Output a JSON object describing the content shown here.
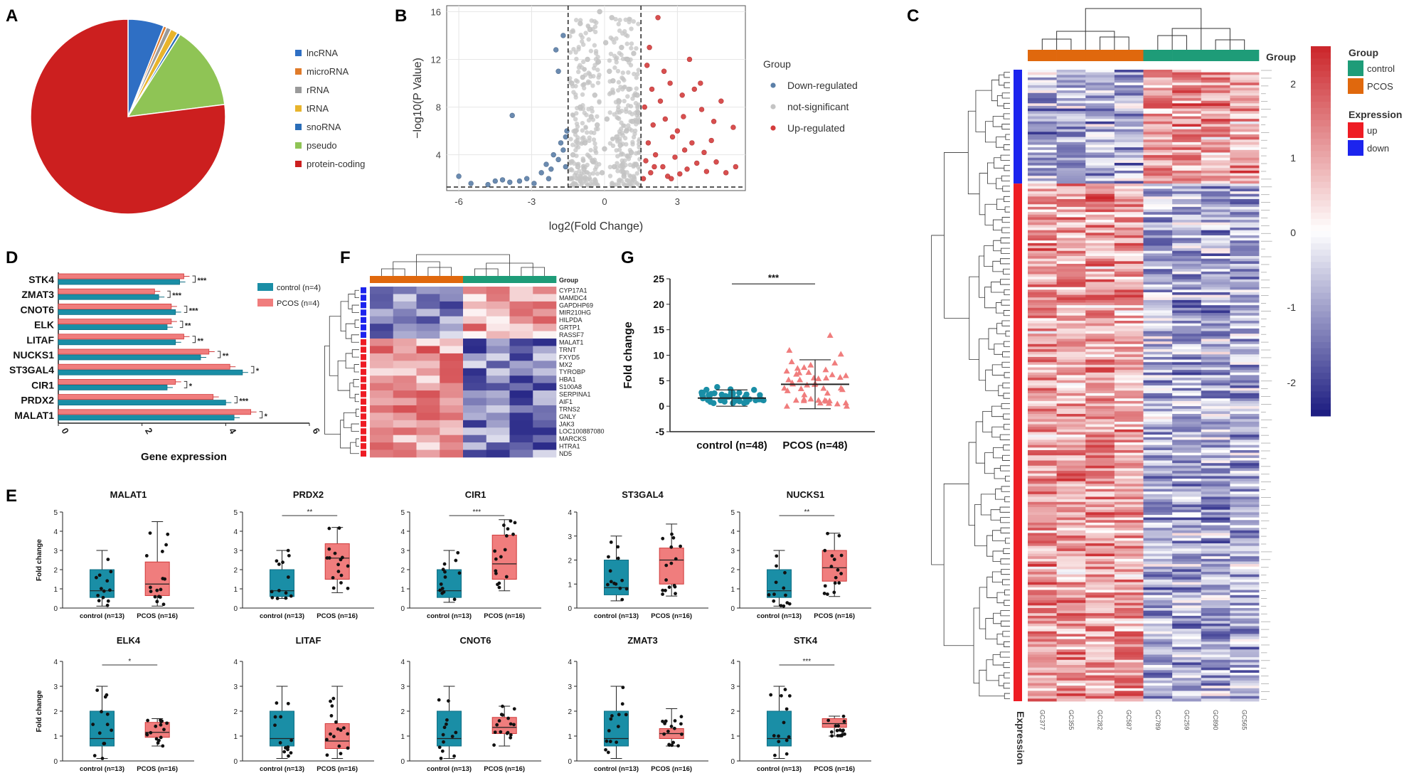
{
  "panel_letters": [
    "A",
    "B",
    "C",
    "D",
    "E",
    "F",
    "G"
  ],
  "colors": {
    "lncRNA": "#2f6fc4",
    "microRNA": "#e07b2a",
    "rRNA": "#9a9a9a",
    "tRNA": "#e8b42c",
    "snoRNA": "#2a6db8",
    "pseudo": "#8fc455",
    "protein_coding": "#cc1f1f",
    "down": "#5b7fa8",
    "ns": "#c4c4c4",
    "up": "#d43c3c",
    "control": "#1a8ea6",
    "pcos": "#f07d7d",
    "group_control": "#1e9c78",
    "group_pcos": "#e0680d",
    "expr_up": "#ee1c24",
    "expr_down": "#1c24ee"
  },
  "chart_data": [
    {
      "id": "A",
      "type": "pie",
      "labels": [
        "lncRNA",
        "microRNA",
        "rRNA",
        "tRNA",
        "snoRNA",
        "pseudo",
        "protein-coding"
      ],
      "values": [
        6.0,
        0.5,
        0.8,
        1.2,
        0.5,
        14.0,
        77.0
      ]
    },
    {
      "id": "B",
      "type": "scatter",
      "xlabel": "log2(Fold Change)",
      "ylabel": "−log10(P Value)",
      "x_ticks": [
        "-6",
        "-3",
        "0",
        "3"
      ],
      "y_ticks": [
        "4",
        "8",
        "12",
        "16"
      ],
      "xlim": [
        -6.5,
        5.8
      ],
      "ylim": [
        1,
        16.5
      ],
      "vlines": [
        -1.5,
        1.5
      ],
      "hline": 1.3,
      "legend_title": "Group",
      "legend": [
        "Down-regulated",
        "not-significant",
        "Up-regulated"
      ],
      "series": [
        {
          "name": "Down-regulated",
          "points": [
            [
              -6.0,
              2.2
            ],
            [
              -5.5,
              1.6
            ],
            [
              -4.8,
              1.5
            ],
            [
              -4.5,
              1.8
            ],
            [
              -4.2,
              1.9
            ],
            [
              -3.9,
              1.7
            ],
            [
              -3.8,
              7.3
            ],
            [
              -3.5,
              1.8
            ],
            [
              -3.2,
              2.0
            ],
            [
              -2.9,
              1.6
            ],
            [
              -2.6,
              2.5
            ],
            [
              -2.4,
              3.2
            ],
            [
              -2.2,
              2.8
            ],
            [
              -2.1,
              4.0
            ],
            [
              -1.9,
              3.6
            ],
            [
              -1.8,
              5.0
            ],
            [
              -1.7,
              4.4
            ],
            [
              -1.6,
              3.0
            ],
            [
              -1.55,
              6.0
            ],
            [
              -2.0,
              12.8
            ],
            [
              -1.9,
              11.0
            ],
            [
              -1.7,
              14.0
            ],
            [
              -1.6,
              5.5
            ],
            [
              -2.3,
              2.0
            ]
          ]
        },
        {
          "name": "not-significant",
          "points": [
            [
              -1.4,
              2.0
            ],
            [
              -1.3,
              4.0
            ],
            [
              -1.2,
              6.0
            ],
            [
              -1.1,
              3.0
            ],
            [
              -1.0,
              8.0
            ],
            [
              -0.9,
              10.5
            ],
            [
              -0.8,
              5.0
            ],
            [
              -0.7,
              12.0
            ],
            [
              -0.6,
              14.5
            ],
            [
              -0.5,
              3.5
            ],
            [
              -0.4,
              9.0
            ],
            [
              -0.3,
              6.5
            ],
            [
              -0.2,
              16.0
            ],
            [
              -0.1,
              2.5
            ],
            [
              0.0,
              4.5
            ],
            [
              0.1,
              7.0
            ],
            [
              0.2,
              11.0
            ],
            [
              0.3,
              15.5
            ],
            [
              0.4,
              3.0
            ],
            [
              0.5,
              5.5
            ],
            [
              0.6,
              8.5
            ],
            [
              0.7,
              13.0
            ],
            [
              0.8,
              2.2
            ],
            [
              0.9,
              6.0
            ],
            [
              1.0,
              9.5
            ],
            [
              1.1,
              4.2
            ],
            [
              1.2,
              12.5
            ],
            [
              1.3,
              3.2
            ],
            [
              1.4,
              7.5
            ],
            [
              -1.35,
              10.0
            ],
            [
              -1.0,
              15.0
            ],
            [
              -0.55,
              7.2
            ],
            [
              0.35,
              10.2
            ],
            [
              0.65,
              4.8
            ],
            [
              1.15,
              6.8
            ],
            [
              -0.85,
              2.8
            ],
            [
              0.05,
              13.4
            ],
            [
              1.35,
              9.0
            ],
            [
              -0.25,
              11.8
            ],
            [
              0.95,
              12.0
            ]
          ]
        },
        {
          "name": "Up-regulated",
          "points": [
            [
              1.6,
              2.0
            ],
            [
              1.7,
              3.5
            ],
            [
              1.8,
              5.0
            ],
            [
              1.9,
              2.5
            ],
            [
              2.0,
              6.5
            ],
            [
              2.1,
              4.0
            ],
            [
              2.2,
              15.5
            ],
            [
              2.3,
              8.5
            ],
            [
              2.4,
              3.0
            ],
            [
              2.5,
              7.0
            ],
            [
              2.6,
              2.2
            ],
            [
              2.7,
              10.0
            ],
            [
              2.8,
              5.5
            ],
            [
              2.9,
              3.8
            ],
            [
              3.0,
              6.0
            ],
            [
              3.1,
              2.4
            ],
            [
              3.2,
              9.0
            ],
            [
              3.3,
              4.4
            ],
            [
              3.4,
              2.8
            ],
            [
              3.5,
              12.0
            ],
            [
              3.6,
              5.0
            ],
            [
              3.8,
              3.3
            ],
            [
              4.0,
              7.8
            ],
            [
              4.2,
              2.6
            ],
            [
              4.4,
              5.2
            ],
            [
              4.6,
              3.4
            ],
            [
              4.8,
              8.5
            ],
            [
              5.0,
              2.5
            ],
            [
              5.3,
              6.3
            ],
            [
              1.65,
              8.0
            ],
            [
              1.75,
              11.5
            ],
            [
              1.85,
              13.0
            ],
            [
              2.05,
              3.0
            ],
            [
              2.45,
              11.0
            ],
            [
              3.7,
              9.5
            ],
            [
              4.1,
              4.2
            ],
            [
              4.5,
              6.8
            ],
            [
              5.4,
              3.0
            ],
            [
              2.75,
              2.0
            ],
            [
              3.25,
              7.2
            ],
            [
              1.95,
              9.5
            ],
            [
              3.95,
              10.0
            ]
          ]
        }
      ]
    },
    {
      "id": "C",
      "type": "heatmap",
      "columns": [
        "GC377",
        "GC355",
        "GC282",
        "GC587",
        "GC789",
        "GC259",
        "GC890",
        "GC565"
      ],
      "group_label": "Group",
      "row_label": "Expression",
      "colorbar_ticks": [
        "2",
        "1",
        "0",
        "-1",
        "-2"
      ],
      "legend_group_title": "Group",
      "legend_group": [
        "control",
        "PCOS"
      ],
      "legend_expr_title": "Expression",
      "legend_expr": [
        "up",
        "down"
      ],
      "row_split": {
        "down": 44,
        "up": 200
      }
    },
    {
      "id": "D",
      "type": "bar",
      "categories": [
        "STK4",
        "ZMAT3",
        "CNOT6",
        "ELK",
        "LITAF",
        "NUCKS1",
        "ST3GAL4",
        "CIR1",
        "PRDX2",
        "MALAT1"
      ],
      "series": [
        {
          "name": "control (n=4)",
          "values": [
            2.9,
            2.4,
            2.8,
            2.6,
            2.8,
            3.4,
            4.4,
            2.6,
            4.0,
            4.2
          ]
        },
        {
          "name": "PCOS (n=4)",
          "values": [
            3.0,
            2.3,
            2.7,
            2.7,
            3.0,
            3.6,
            4.1,
            2.8,
            3.7,
            4.6
          ]
        }
      ],
      "sig": [
        "***",
        "***",
        "***",
        "**",
        "**",
        "**",
        "*",
        "*",
        "***",
        "*"
      ],
      "xlabel": "Gene expression",
      "x_ticks": [
        "0",
        "2",
        "4",
        "6"
      ],
      "xlim": [
        0,
        6
      ]
    },
    {
      "id": "F",
      "type": "heatmap",
      "genes": [
        "CYP17A1",
        "MAMDC4",
        "GAPDHP69",
        "MIR210HG",
        "HILPDA",
        "GRTP1",
        "RASSF7",
        "MALAT1",
        "TRNT",
        "FXYD5",
        "MX2",
        "TYROBP",
        "HBA1",
        "S100A8",
        "SERPINA1",
        "AIF1",
        "TRNS2",
        "GNLY",
        "JAK3",
        "LOC100887080",
        "MARCKS",
        "HTRA1",
        "ND5"
      ],
      "group_label": "Group"
    },
    {
      "id": "G",
      "type": "scatter",
      "ylabel": "Fold change",
      "y_ticks": [
        "-5",
        "0",
        "5",
        "10",
        "15",
        "20",
        "25"
      ],
      "ylim": [
        -5,
        25
      ],
      "categories": [
        "control (n=48)",
        "PCOS (n=48)"
      ],
      "mean": [
        1.6,
        4.3
      ],
      "sd": [
        1.6,
        4.8
      ],
      "sig": "***"
    },
    {
      "id": "E",
      "type": "box",
      "ylabel": "Fold change",
      "categories": [
        "control (n=13)",
        "PCOS (n=16)"
      ],
      "panels": [
        {
          "title": "MALAT1",
          "ymax": 5,
          "sig": "",
          "ctrl": [
            0.1,
            0.55,
            0.9,
            2.0,
            3.0
          ],
          "pcos": [
            0.1,
            0.65,
            1.25,
            2.4,
            4.5
          ]
        },
        {
          "title": "PRDX2",
          "ymax": 5,
          "sig": "**",
          "ctrl": [
            0.5,
            0.6,
            0.9,
            2.0,
            3.0
          ],
          "pcos": [
            0.8,
            1.5,
            2.6,
            3.35,
            4.2
          ]
        },
        {
          "title": "CIR1",
          "ymax": 5,
          "sig": "***",
          "ctrl": [
            0.3,
            0.55,
            0.9,
            2.0,
            3.0
          ],
          "pcos": [
            0.9,
            1.5,
            2.3,
            3.8,
            4.6
          ]
        },
        {
          "title": "ST3GAL4",
          "ymax": 4,
          "sig": "",
          "ctrl": [
            0.3,
            0.55,
            0.85,
            2.0,
            3.0
          ],
          "pcos": [
            0.5,
            1.0,
            2.0,
            2.5,
            3.5
          ]
        },
        {
          "title": "NUCKS1",
          "ymax": 5,
          "sig": "**",
          "ctrl": [
            0.1,
            0.55,
            0.9,
            2.0,
            3.0
          ],
          "pcos": [
            0.6,
            1.4,
            2.1,
            3.0,
            3.9
          ]
        },
        {
          "title": "ELK4",
          "ymax": 4,
          "sig": "*",
          "ctrl": [
            0.1,
            0.6,
            0.9,
            2.0,
            3.0
          ],
          "pcos": [
            0.6,
            0.95,
            1.15,
            1.55,
            1.7
          ]
        },
        {
          "title": "LITAF",
          "ymax": 4,
          "sig": "",
          "ctrl": [
            0.1,
            0.6,
            0.9,
            2.0,
            3.0
          ],
          "pcos": [
            0.1,
            0.5,
            0.8,
            1.5,
            3.0
          ]
        },
        {
          "title": "CNOT6",
          "ymax": 4,
          "sig": "",
          "ctrl": [
            0.1,
            0.6,
            0.9,
            2.0,
            3.0
          ],
          "pcos": [
            0.6,
            1.1,
            1.35,
            1.75,
            2.2
          ]
        },
        {
          "title": "ZMAT3",
          "ymax": 4,
          "sig": "",
          "ctrl": [
            0.1,
            0.6,
            0.9,
            2.0,
            3.0
          ],
          "pcos": [
            0.6,
            0.9,
            1.1,
            1.3,
            2.1
          ]
        },
        {
          "title": "STK4",
          "ymax": 4,
          "sig": "***",
          "ctrl": [
            0.1,
            0.6,
            0.9,
            2.0,
            3.0
          ],
          "pcos": [
            1.0,
            1.35,
            1.5,
            1.7,
            1.8
          ]
        }
      ]
    }
  ]
}
